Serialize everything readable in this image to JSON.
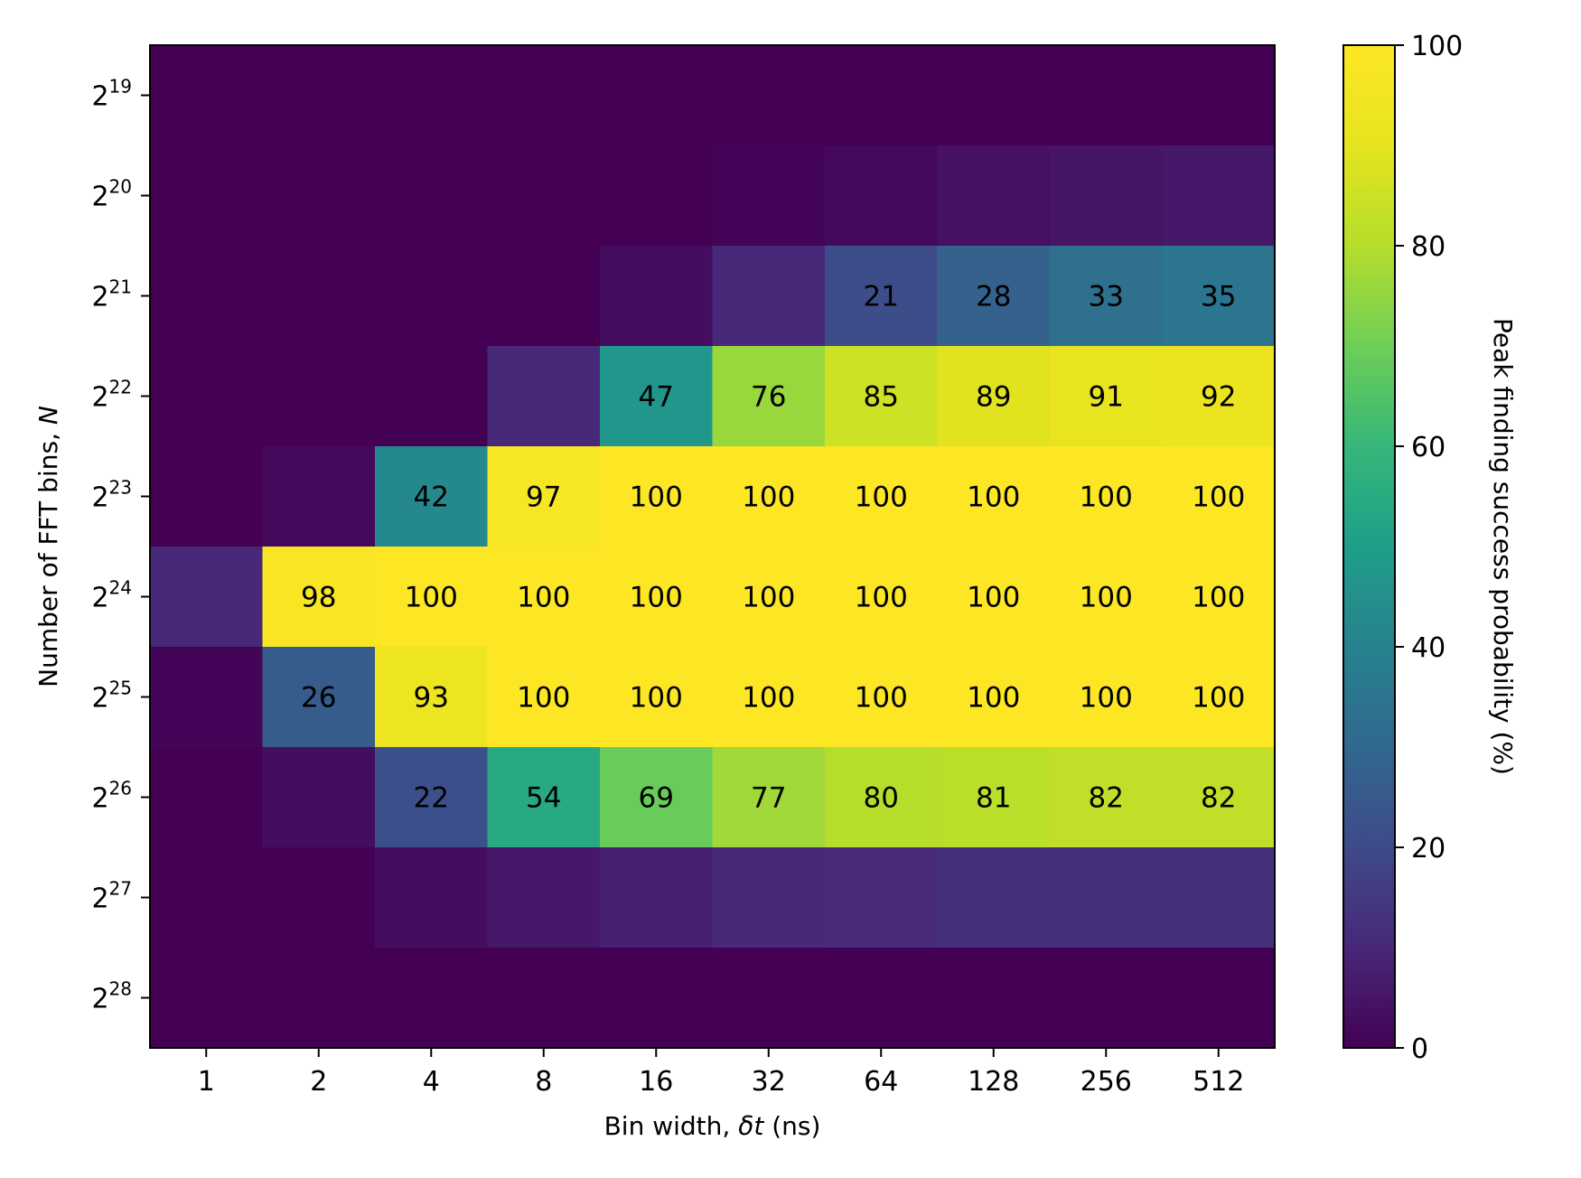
{
  "chart_data": {
    "type": "heatmap",
    "xlabel_prefix": "Bin width, ",
    "xlabel_symbol": "δt",
    "xlabel_suffix": " (ns)",
    "ylabel_prefix": "Number of FFT bins, ",
    "ylabel_symbol": "N",
    "colorbar_label": "Peak finding success probability (%)",
    "colormap": "viridis",
    "value_range": [
      0,
      100
    ],
    "x_categories": [
      "1",
      "2",
      "4",
      "8",
      "16",
      "32",
      "64",
      "128",
      "256",
      "512"
    ],
    "y_categories": [
      {
        "base": "2",
        "exp": "19"
      },
      {
        "base": "2",
        "exp": "20"
      },
      {
        "base": "2",
        "exp": "21"
      },
      {
        "base": "2",
        "exp": "22"
      },
      {
        "base": "2",
        "exp": "23"
      },
      {
        "base": "2",
        "exp": "24"
      },
      {
        "base": "2",
        "exp": "25"
      },
      {
        "base": "2",
        "exp": "26"
      },
      {
        "base": "2",
        "exp": "27"
      },
      {
        "base": "2",
        "exp": "28"
      }
    ],
    "values": [
      [
        0,
        0,
        0,
        0,
        0,
        0,
        0,
        0,
        0,
        0
      ],
      [
        0,
        0,
        0,
        0,
        0,
        1,
        2,
        4,
        5,
        6
      ],
      [
        0,
        0,
        0,
        0,
        3,
        10,
        21,
        28,
        33,
        35
      ],
      [
        0,
        0,
        0,
        10,
        47,
        76,
        85,
        89,
        91,
        92
      ],
      [
        0,
        2,
        42,
        97,
        100,
        100,
        100,
        100,
        100,
        100
      ],
      [
        10,
        98,
        100,
        100,
        100,
        100,
        100,
        100,
        100,
        100
      ],
      [
        1,
        26,
        93,
        100,
        100,
        100,
        100,
        100,
        100,
        100
      ],
      [
        0,
        3,
        22,
        54,
        69,
        77,
        80,
        81,
        82,
        82
      ],
      [
        0,
        0,
        3,
        6,
        8,
        10,
        11,
        12,
        12,
        12
      ],
      [
        0,
        0,
        0,
        0,
        0,
        0,
        0,
        0,
        0,
        0
      ]
    ],
    "annotation_threshold": 20,
    "colorbar_ticks": [
      "0",
      "20",
      "40",
      "60",
      "80",
      "100"
    ]
  }
}
